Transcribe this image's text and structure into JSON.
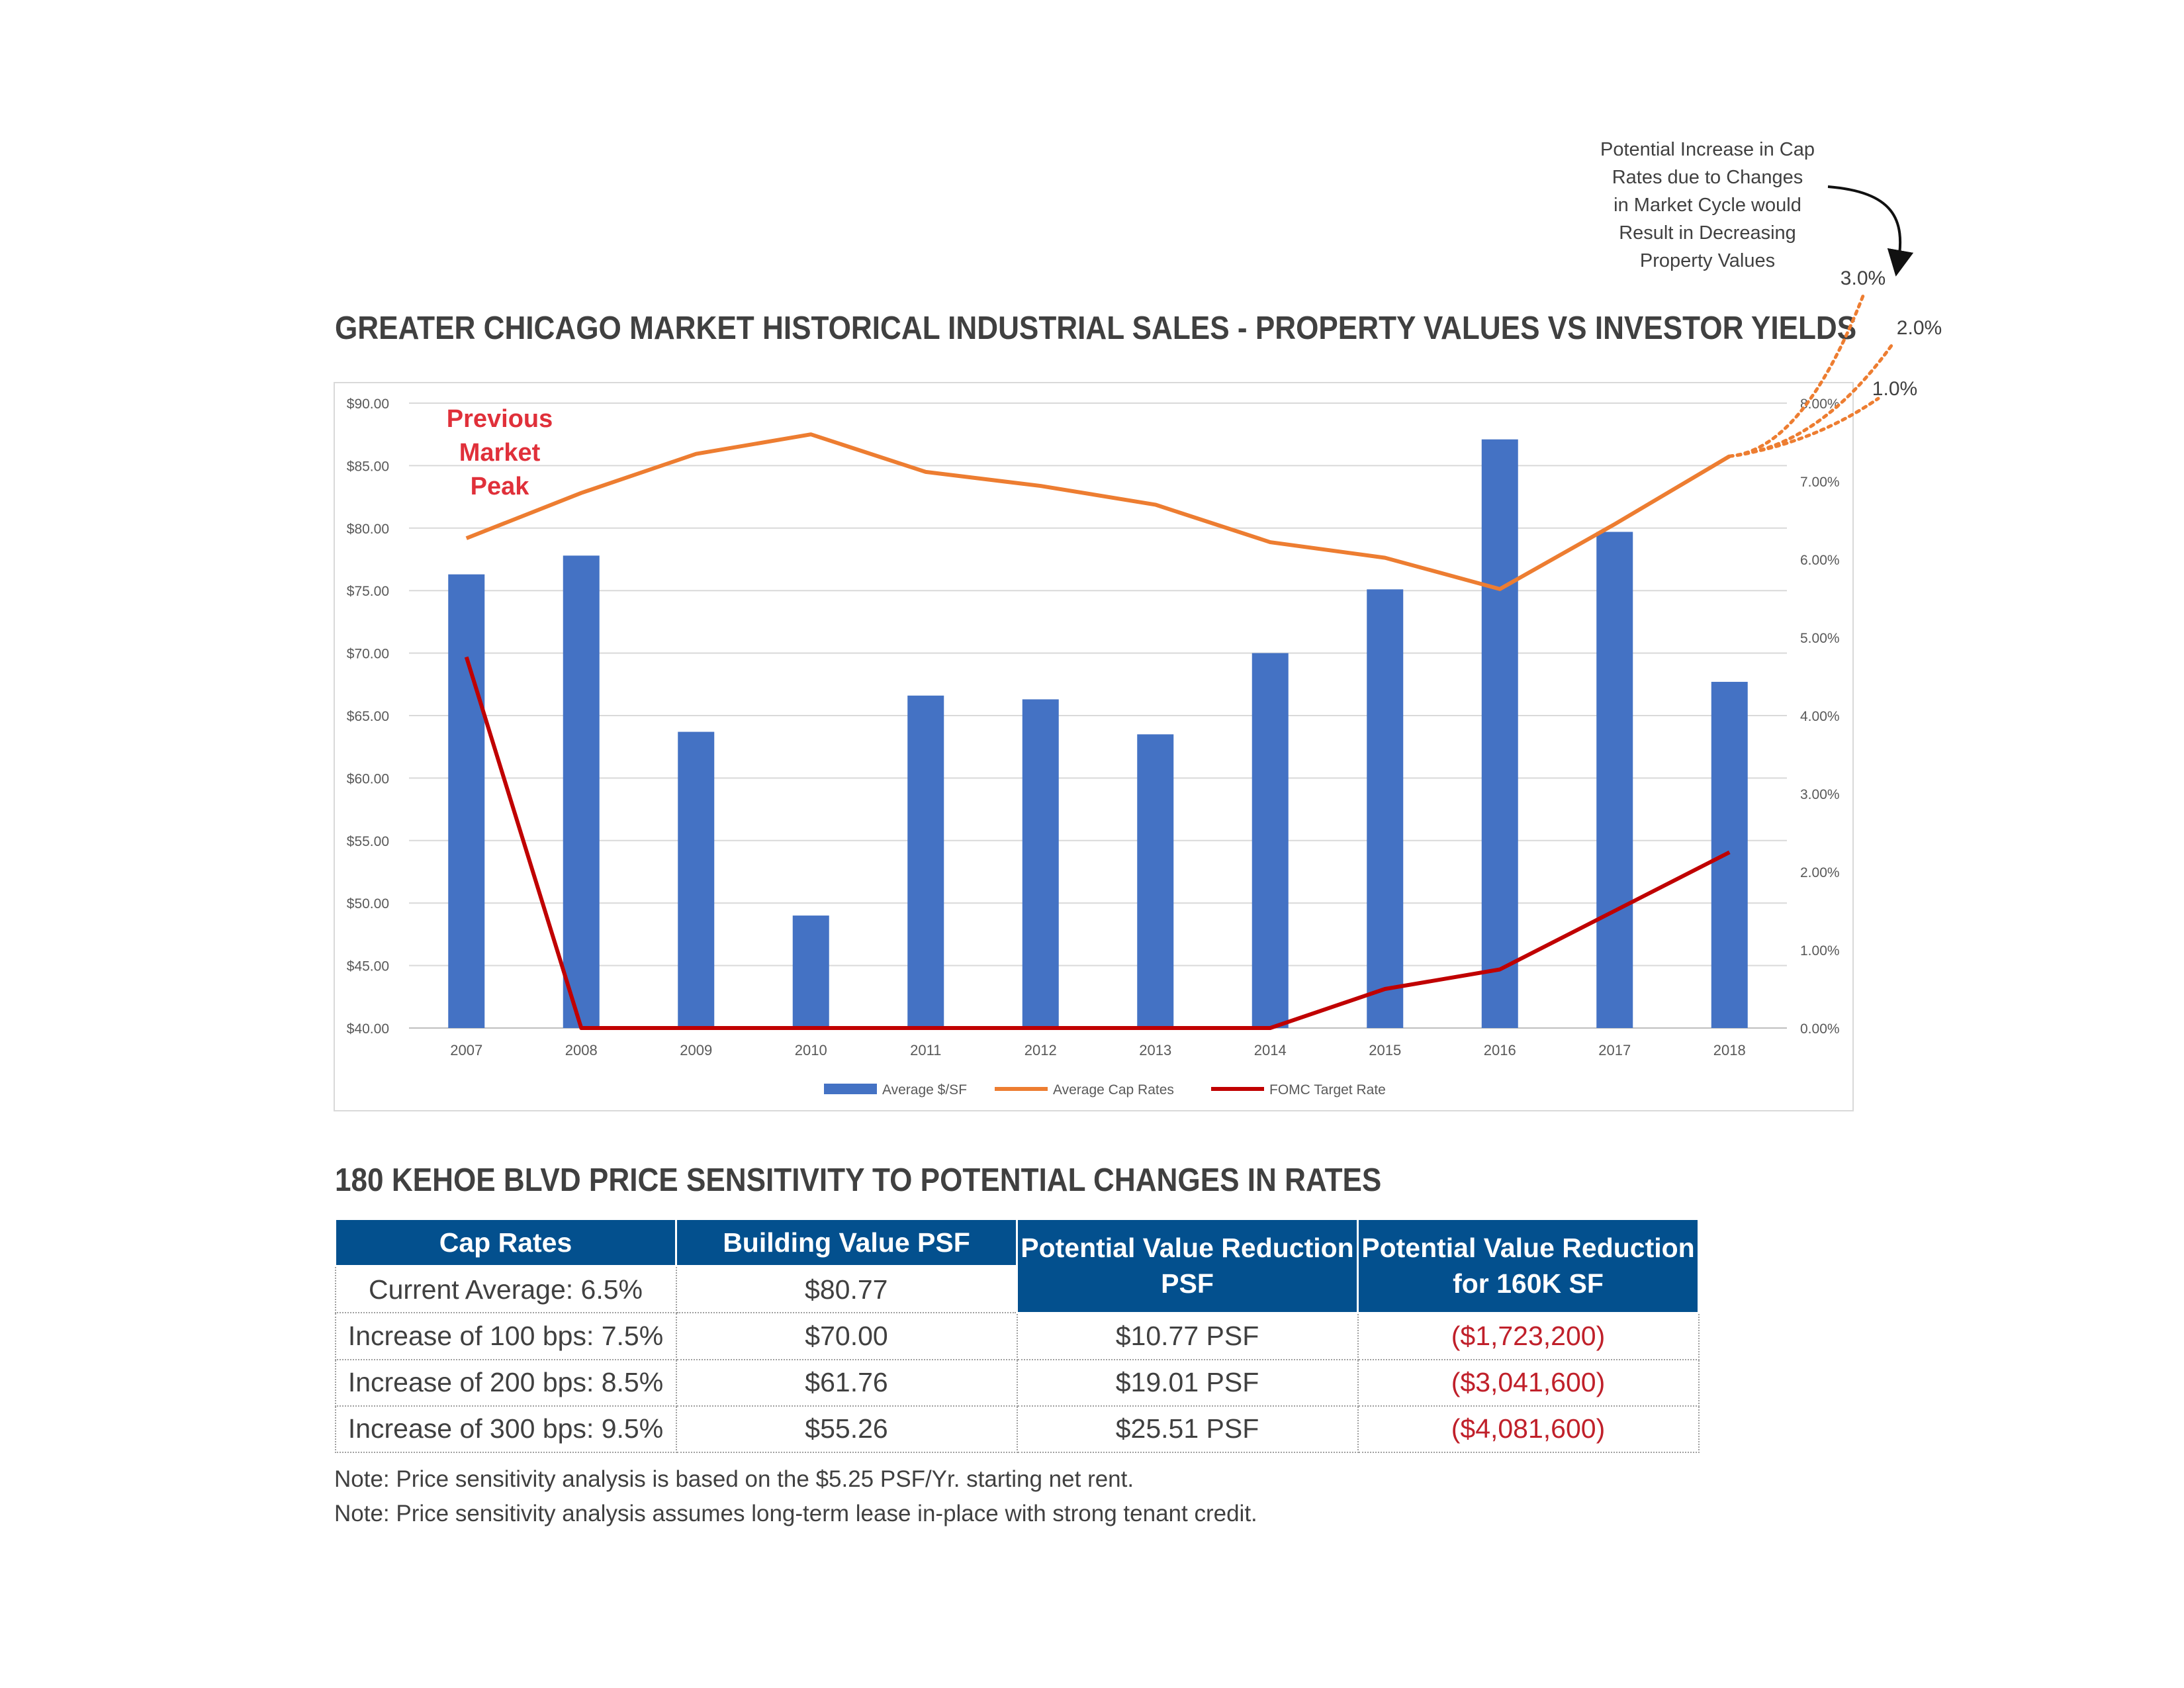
{
  "chart_title": "GREATER CHICAGO MARKET HISTORICAL INDUSTRIAL SALES - PROPERTY VALUES VS INVESTOR YIELDS",
  "annotation": {
    "lines": [
      "Potential Increase in Cap",
      "Rates due to Changes",
      "in Market Cycle would",
      "Result in Decreasing",
      "Property Values"
    ],
    "scenarios": [
      "3.0%",
      "2.0%",
      "1.0%"
    ]
  },
  "chart_data": {
    "type": "bar",
    "categories": [
      "2007",
      "2008",
      "2009",
      "2010",
      "2011",
      "2012",
      "2013",
      "2014",
      "2015",
      "2016",
      "2017",
      "2018"
    ],
    "series": [
      {
        "name": "Average $/SF",
        "type": "bar",
        "axis": "left",
        "color": "#4472c4",
        "values": [
          76.3,
          77.8,
          63.7,
          49.0,
          66.6,
          66.3,
          63.5,
          70.0,
          75.1,
          87.1,
          79.7,
          67.7
        ]
      },
      {
        "name": "Average Cap Rates",
        "type": "line",
        "axis": "right",
        "color": "#ed7d31",
        "values": [
          6.27,
          6.85,
          7.35,
          7.6,
          7.12,
          6.94,
          6.7,
          6.22,
          6.02,
          5.62,
          6.45,
          7.32
        ]
      },
      {
        "name": "FOMC Target Rate",
        "type": "line",
        "axis": "right",
        "color": "#c00000",
        "values": [
          4.75,
          0.0,
          0.0,
          0.0,
          0.0,
          0.0,
          0.0,
          0.0,
          0.5,
          0.75,
          1.5,
          2.25
        ]
      }
    ],
    "left_axis": {
      "min": 40,
      "max": 90,
      "step": 5,
      "ticks": [
        "$40.00",
        "$45.00",
        "$50.00",
        "$55.00",
        "$60.00",
        "$65.00",
        "$70.00",
        "$75.00",
        "$80.00",
        "$85.00",
        "$90.00"
      ]
    },
    "right_axis": {
      "min": 0,
      "max": 8,
      "step": 1,
      "ticks": [
        "0.00%",
        "1.00%",
        "2.00%",
        "3.00%",
        "4.00%",
        "5.00%",
        "6.00%",
        "7.00%",
        "8.00%"
      ]
    },
    "grid": true,
    "legend_position": "bottom",
    "peak_label": [
      "Previous",
      "Market",
      "Peak"
    ],
    "projections": [
      {
        "label": "3.0%",
        "cap_rate": 10.32
      },
      {
        "label": "2.0%",
        "cap_rate": 9.32
      },
      {
        "label": "1.0%",
        "cap_rate": 8.32
      }
    ]
  },
  "table_title": "180 KEHOE BLVD PRICE SENSITIVITY TO POTENTIAL CHANGES IN RATES",
  "table": {
    "headers": [
      "Cap Rates",
      "Building Value PSF",
      "Potential Value Reduction PSF",
      "Potential Value Reduction for 160K SF"
    ],
    "current": {
      "cap": "Current Average: 6.5%",
      "value": "$80.77"
    },
    "rows": [
      {
        "cap": "Increase of 100 bps: 7.5%",
        "value": "$70.00",
        "reduction_psf": "$10.77 PSF",
        "reduction_total": "($1,723,200)"
      },
      {
        "cap": "Increase of 200 bps: 8.5%",
        "value": "$61.76",
        "reduction_psf": "$19.01 PSF",
        "reduction_total": "($3,041,600)"
      },
      {
        "cap": "Increase of 300 bps: 9.5%",
        "value": "$55.26",
        "reduction_psf": "$25.51 PSF",
        "reduction_total": "($4,081,600)"
      }
    ]
  },
  "notes": [
    "Note: Price sensitivity analysis is based on the $5.25 PSF/Yr. starting net rent.",
    "Note: Price sensitivity analysis assumes long-term lease in-place with strong tenant credit."
  ]
}
